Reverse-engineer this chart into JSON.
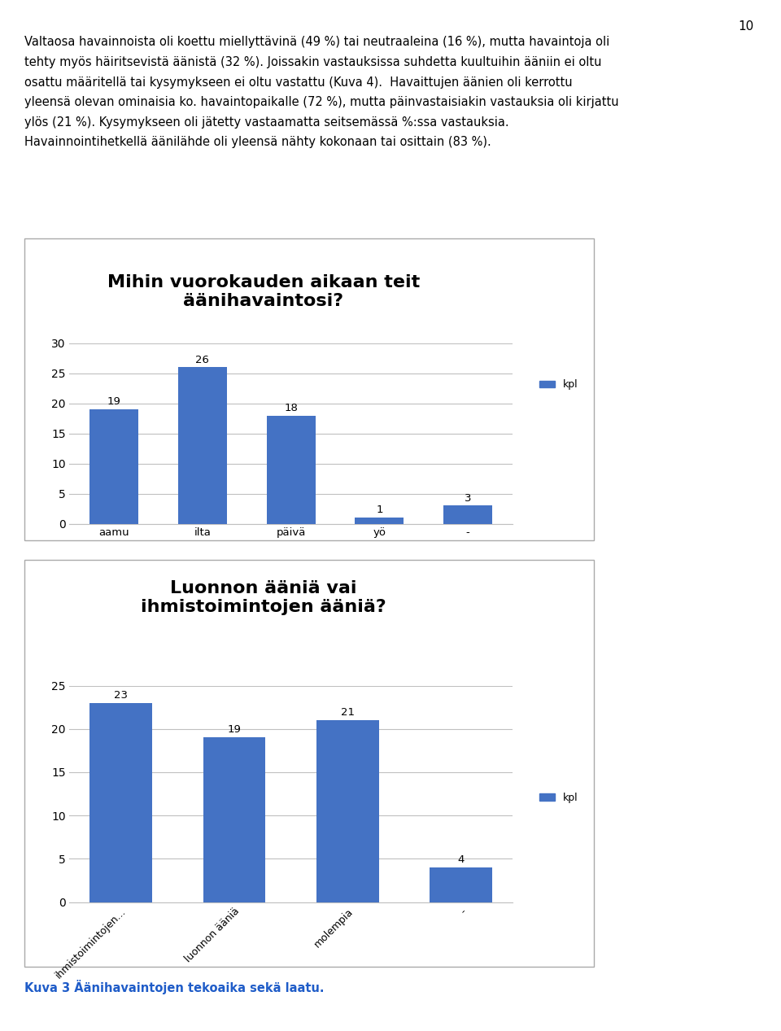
{
  "page_number": "10",
  "paragraph_text": "Valtaosa havainnoista oli koettu miellyttävinä (49 %) tai neutraaleina (16 %), mutta havaintoja oli\ntehty myös häiritsevistä äänistä (32 %). Joissakin vastauksissa suhdetta kuultuihin ääniin ei oltu\nosattu määritellä tai kysymykseen ei oltu vastattu (Kuva 4).  Havaittujen äänien oli kerrottu\nyleensä olevan ominaisia ko. havaintopaikalle (72 %), mutta päinvastaisiakin vastauksia oli kirjattu\nylös (21 %). Kysymykseen oli jätetty vastaamatta seitsemässä %:ssa vastauksia.\nHavainnointihetkellä äänilähde oli yleensä nähty kokonaan tai osittain (83 %).",
  "chart1": {
    "title": "Mihin vuorokauden aikaan teit\näänihavaintosi?",
    "categories": [
      "aamu",
      "ilta",
      "päivä",
      "yö",
      "-"
    ],
    "values": [
      19,
      26,
      18,
      1,
      3
    ],
    "bar_color": "#4472C4",
    "legend_label": "kpl",
    "ylim": [
      0,
      30
    ],
    "yticks": [
      0,
      5,
      10,
      15,
      20,
      25,
      30
    ]
  },
  "chart2": {
    "title": "Luonnon ääniä vai\nihmistoimintojen ääniä?",
    "categories": [
      "ihmistoimintojen...",
      "luonnon ääniä",
      "molempia",
      "-"
    ],
    "values": [
      23,
      19,
      21,
      4
    ],
    "bar_color": "#4472C4",
    "legend_label": "kpl",
    "ylim": [
      0,
      25
    ],
    "yticks": [
      0,
      5,
      10,
      15,
      20,
      25
    ]
  },
  "caption": "Kuva 3 Äänihavaintojen tekoaika sekä laatu.",
  "background_color": "#ffffff",
  "chart_bg_color": "#ffffff",
  "bar_color": "#4472C4",
  "text_color": "#000000",
  "caption_color": "#1F5CC8",
  "page_num_fontsize": 11,
  "text_fontsize": 10.5,
  "title_fontsize": 16,
  "axis_fontsize": 10,
  "label_fontsize": 9,
  "caption_fontsize": 10.5,
  "border_color": "#AAAAAA",
  "grid_color": "#C0C0C0",
  "text_linespacing": 1.8
}
